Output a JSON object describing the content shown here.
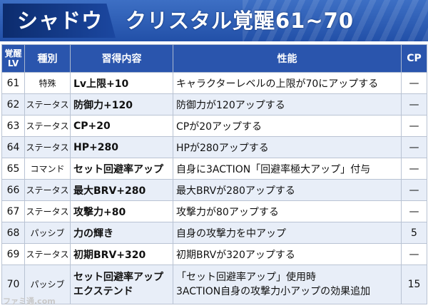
{
  "banner": {
    "character": "シャドウ",
    "title": "クリスタル覚醒61~70"
  },
  "table": {
    "headers": {
      "level": "覚醒LV",
      "type": "種別",
      "skill": "習得内容",
      "performance": "性能",
      "cp": "CP"
    },
    "rows": [
      {
        "lv": "61",
        "type": "特殊",
        "skill": "Lv上限+10",
        "perf": "キャラクターレベルの上限が70にアップする",
        "cp": "—"
      },
      {
        "lv": "62",
        "type": "ステータス",
        "skill": "防御力+120",
        "perf": "防御力が120アップする",
        "cp": "—"
      },
      {
        "lv": "63",
        "type": "ステータス",
        "skill": "CP+20",
        "perf": "CPが20アップする",
        "cp": "—"
      },
      {
        "lv": "64",
        "type": "ステータス",
        "skill": "HP+280",
        "perf": "HPが280アップする",
        "cp": "—"
      },
      {
        "lv": "65",
        "type": "コマンド",
        "skill": "セット回避率アップ",
        "perf": "自身に3ACTION「回避率極大アップ」付与",
        "cp": "—"
      },
      {
        "lv": "66",
        "type": "ステータス",
        "skill": "最大BRV+280",
        "perf": "最大BRVが280アップする",
        "cp": "—"
      },
      {
        "lv": "67",
        "type": "ステータス",
        "skill": "攻撃力+80",
        "perf": "攻撃力が80アップする",
        "cp": "—"
      },
      {
        "lv": "68",
        "type": "パッシブ",
        "skill": "力の輝き",
        "perf": "自身の攻撃力を中アップ",
        "cp": "5"
      },
      {
        "lv": "69",
        "type": "ステータス",
        "skill": "初期BRV+320",
        "perf": "初期BRVが320アップする",
        "cp": "—"
      },
      {
        "lv": "70",
        "type": "パッシブ",
        "skill_line1": "セット回避率アップ",
        "skill_line2": "エクステンド",
        "perf_line1": "「セット回避率アップ」使用時",
        "perf_line2": "3ACTION自身の攻撃力小アップの効果追加",
        "cp": "15"
      }
    ]
  },
  "watermark": "ファミ通.com"
}
